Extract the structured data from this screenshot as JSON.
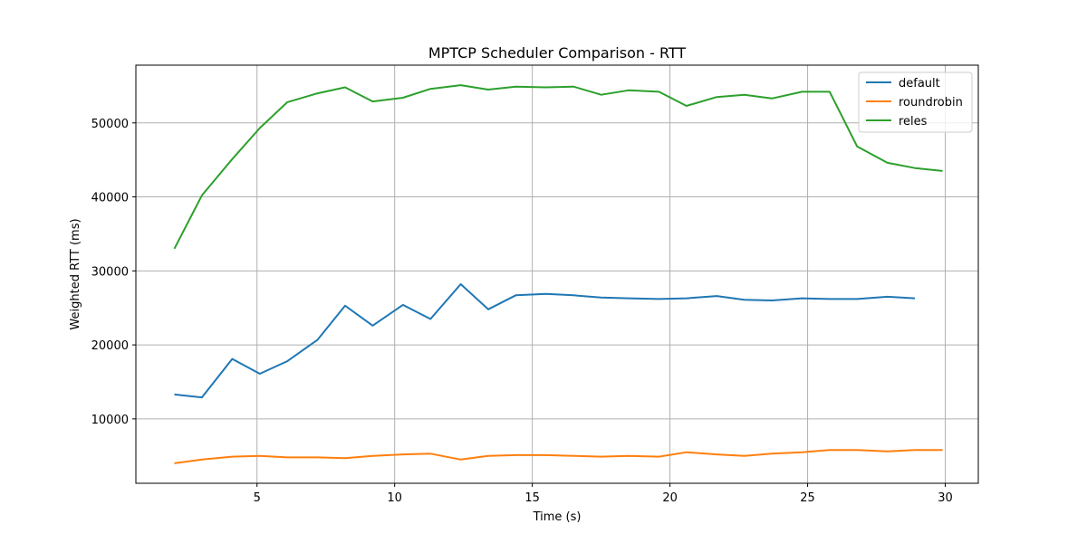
{
  "chart_data": {
    "type": "line",
    "title": "MPTCP Scheduler Comparison - RTT",
    "xlabel": "Time (s)",
    "ylabel": "Weighted RTT (ms)",
    "xlim": [
      0.6,
      31.2
    ],
    "ylim": [
      1300,
      57800
    ],
    "xticks": [
      5,
      10,
      15,
      20,
      25,
      30
    ],
    "yticks": [
      10000,
      20000,
      30000,
      40000,
      50000
    ],
    "grid": true,
    "legend_position": "top-right",
    "series": [
      {
        "name": "default",
        "color": "#1f77b4",
        "x": [
          2.0,
          3.0,
          4.1,
          5.1,
          6.1,
          7.2,
          8.2,
          9.2,
          10.3,
          11.3,
          12.4,
          13.4,
          14.4,
          15.5,
          16.5,
          17.5,
          18.5,
          19.6,
          20.6,
          21.7,
          22.7,
          23.7,
          24.8,
          25.8,
          26.8,
          27.9,
          28.9
        ],
        "y": [
          13300,
          12900,
          18100,
          16100,
          17800,
          20700,
          25300,
          22600,
          25400,
          23500,
          28200,
          24800,
          26700,
          26900,
          26700,
          26400,
          26300,
          26200,
          26300,
          26600,
          26100,
          26000,
          26300,
          26200,
          26200,
          26500,
          26300
        ]
      },
      {
        "name": "roundrobin",
        "color": "#ff7f0e",
        "x": [
          2.0,
          3.0,
          4.1,
          5.1,
          6.1,
          7.2,
          8.2,
          9.2,
          10.3,
          11.3,
          12.4,
          13.4,
          14.4,
          15.5,
          16.5,
          17.5,
          18.5,
          19.6,
          20.6,
          21.7,
          22.7,
          23.7,
          24.8,
          25.8,
          26.8,
          27.9,
          28.9,
          29.9
        ],
        "y": [
          4000,
          4500,
          4900,
          5000,
          4800,
          4800,
          4700,
          5000,
          5200,
          5300,
          4500,
          5000,
          5100,
          5100,
          5000,
          4900,
          5000,
          4900,
          5500,
          5200,
          5000,
          5300,
          5500,
          5800,
          5800,
          5600,
          5800,
          5800
        ]
      },
      {
        "name": "reles",
        "color": "#2ca02c",
        "x": [
          2.0,
          3.0,
          4.1,
          5.1,
          6.1,
          7.2,
          8.2,
          9.2,
          10.3,
          11.3,
          12.4,
          13.4,
          14.4,
          15.5,
          16.5,
          17.5,
          18.5,
          19.6,
          20.6,
          21.7,
          22.7,
          23.7,
          24.8,
          25.8,
          26.8,
          27.9,
          28.9,
          29.9
        ],
        "y": [
          33000,
          40200,
          45100,
          49300,
          52800,
          54000,
          54800,
          52900,
          53400,
          54600,
          55100,
          54500,
          54900,
          54800,
          54900,
          53800,
          54400,
          54200,
          52300,
          53500,
          53800,
          53300,
          54200,
          54200,
          46800,
          44600,
          43900,
          43500
        ]
      }
    ]
  }
}
